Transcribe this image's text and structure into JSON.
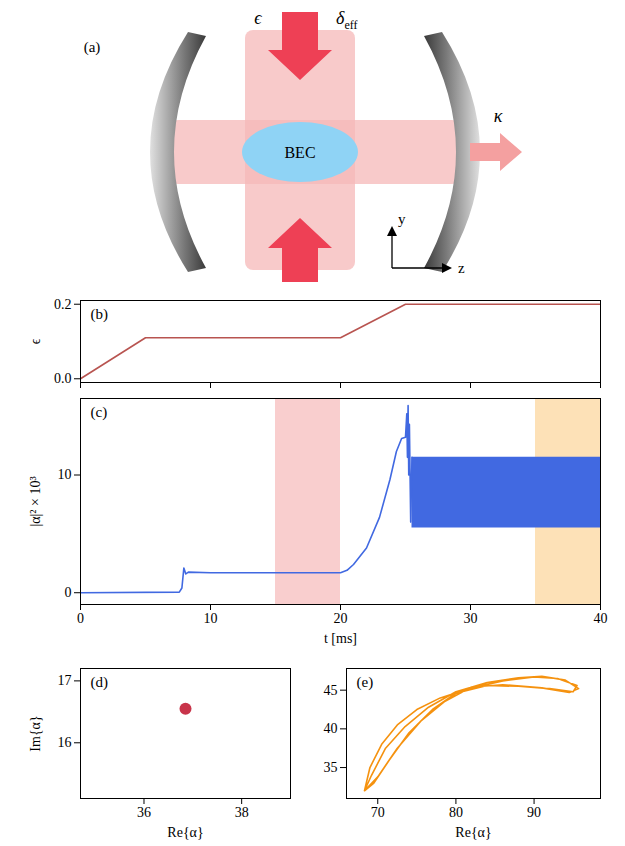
{
  "diagram": {
    "panel": "(a)",
    "pump": "ϵ",
    "detuning": {
      "symbol": "δ",
      "subscript": "eff"
    },
    "atoms": "BEC",
    "decay": "κ",
    "axes": [
      "y",
      "z"
    ]
  },
  "chart_data": [
    {
      "type": "line",
      "panel": "(b)",
      "x": [
        0,
        5,
        20,
        25,
        40
      ],
      "values": [
        0,
        0.11,
        0.11,
        0.2,
        0.2
      ],
      "color": "#b85450",
      "xlim": [
        0,
        40
      ],
      "xticks": [
        0,
        10,
        20,
        30,
        40
      ],
      "ylim": [
        -0.01,
        0.21
      ],
      "yticks": [
        {
          "value": 0,
          "label": "0.0"
        },
        {
          "value": 0.2,
          "label": "0.2"
        }
      ],
      "y_label": "ϵ",
      "tick_labels": "y"
    },
    {
      "type": "line",
      "panel": "(c)",
      "x": [
        0,
        7.6,
        7.8,
        7.95,
        8.1,
        8.3,
        10,
        15,
        20,
        20.5,
        21,
        22,
        23,
        23.8,
        24.3,
        24.7,
        25,
        25.1,
        25.15,
        25.2,
        25.25,
        25.3,
        25.4,
        25.5
      ],
      "values": [
        0,
        0.05,
        0.4,
        2.1,
        1.6,
        1.75,
        1.7,
        1.7,
        1.7,
        1.9,
        2.4,
        3.8,
        6.4,
        9.6,
        12,
        13.1,
        13.2,
        15.2,
        11.5,
        15.9,
        10,
        14.3,
        6,
        11.5
      ],
      "band": {
        "x": [
          25.5,
          40
        ],
        "lower": [
          5.5,
          5.5
        ],
        "upper": [
          11.5,
          11.5
        ]
      },
      "spans": [
        {
          "x": [
            15,
            20
          ],
          "color": "#f8c6c6"
        },
        {
          "x": [
            35,
            40
          ],
          "color": "#fddcaa"
        }
      ],
      "color": "#4169e1",
      "xlim": [
        0,
        40
      ],
      "xticks": [
        0,
        10,
        20,
        30,
        40
      ],
      "ylim": [
        -1,
        16.5
      ],
      "yticks": [
        0,
        10
      ],
      "x_label": "t [ms]",
      "y_label": "|α|² × 10³"
    },
    {
      "type": "scatter",
      "panel": "(d)",
      "x": [
        36.85
      ],
      "values": [
        16.55
      ],
      "color": "#c8344a",
      "marker": "circle",
      "xlim": [
        34.7,
        39.0
      ],
      "xticks": [
        36,
        38
      ],
      "ylim": [
        15.1,
        17.2
      ],
      "yticks": [
        16,
        17
      ],
      "x_label": "Re{α}",
      "y_label": "Im{α}"
    },
    {
      "type": "line",
      "panel": "(e)",
      "x": [
        68.3,
        69,
        70.5,
        72.5,
        75,
        78,
        82,
        86,
        90,
        93,
        95.5,
        95,
        92,
        88,
        84,
        80,
        77,
        74,
        71.5,
        69.5,
        68.3,
        69.2,
        71,
        73.5,
        76.5,
        80,
        84,
        88,
        91,
        94,
        95.7,
        94.5,
        91,
        86,
        82,
        78.5,
        75.5,
        72.5,
        70,
        68.3
      ],
      "values": [
        32,
        35,
        38,
        40.5,
        42.5,
        44,
        45.3,
        46.2,
        46.7,
        46.5,
        45.6,
        44.8,
        45.2,
        45.5,
        45.6,
        44.6,
        42.5,
        39.5,
        36,
        33,
        32,
        34,
        37.5,
        40.3,
        42.8,
        44.8,
        46,
        46.6,
        46.8,
        46.3,
        45.2,
        44.7,
        45.3,
        45.7,
        45.4,
        43.5,
        41,
        37.5,
        33.8,
        32
      ],
      "color": "#f5920f",
      "xlim": [
        66,
        98.5
      ],
      "xticks": [
        70,
        80,
        90
      ],
      "ylim": [
        31,
        47.8
      ],
      "yticks": [
        35,
        40,
        45
      ],
      "x_label": "Re{α}"
    }
  ]
}
